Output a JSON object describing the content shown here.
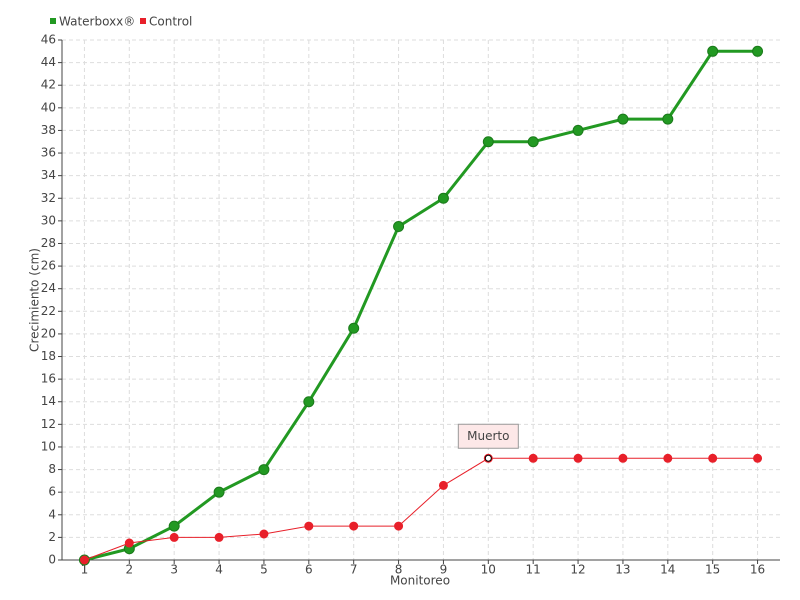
{
  "chart_data": {
    "type": "line",
    "x_label": "Monitoreo",
    "y_label": "Crecimiento (cm)",
    "categories": [
      "1",
      "2",
      "3",
      "4",
      "5",
      "6",
      "7",
      "8",
      "9",
      "10",
      "11",
      "12",
      "13",
      "14",
      "15",
      "16"
    ],
    "series": [
      {
        "name": "Waterboxx®",
        "color": "#229922",
        "values": [
          0,
          1,
          3,
          6,
          8,
          14,
          20.5,
          29.5,
          32,
          37,
          37,
          38,
          39,
          39,
          45,
          45
        ]
      },
      {
        "name": "Control",
        "color": "#e8202a",
        "values": [
          0,
          1.5,
          2,
          2,
          2.3,
          3,
          3,
          3,
          6.6,
          9,
          9,
          9,
          9,
          9,
          9,
          9
        ]
      }
    ],
    "annotation": "Muerto",
    "ylim": [
      0,
      46
    ],
    "yticks": [
      0,
      2,
      4,
      6,
      8,
      10,
      12,
      14,
      16,
      18,
      20,
      22,
      24,
      26,
      28,
      30,
      32,
      34,
      36,
      38,
      40,
      42,
      44,
      46
    ],
    "grid": true
  }
}
